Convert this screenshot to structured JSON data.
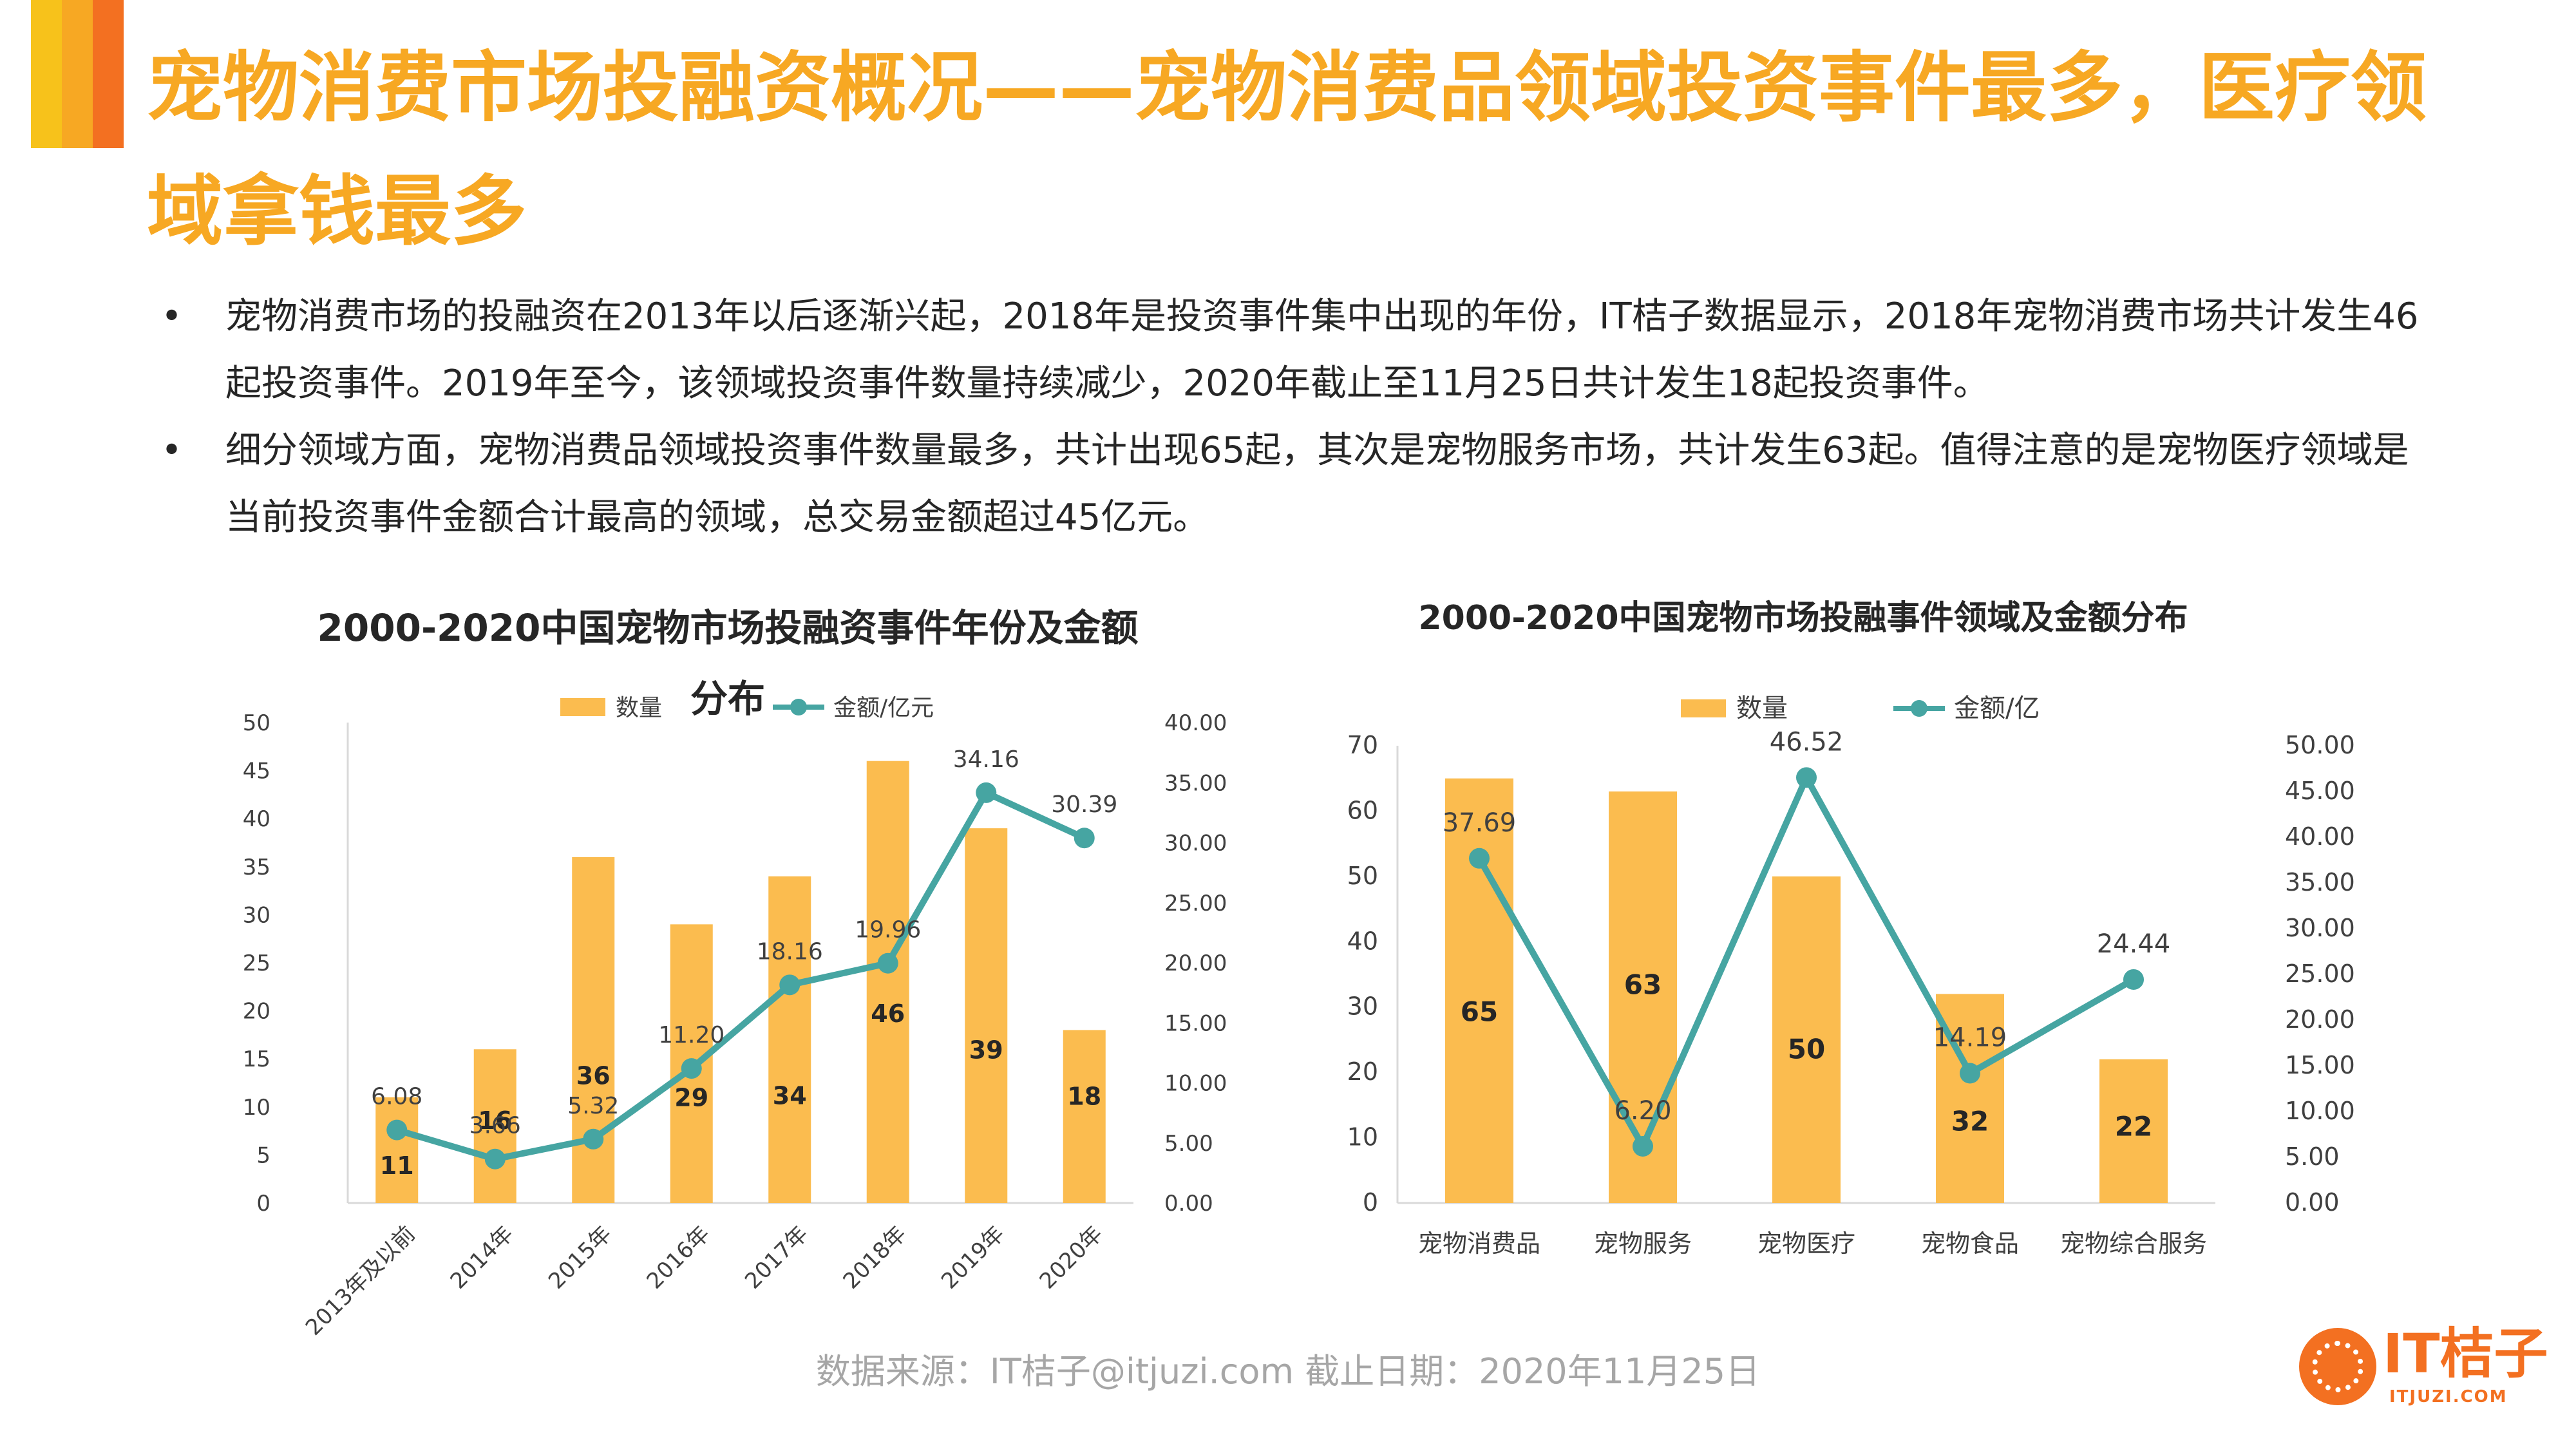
{
  "header": {
    "title": "宠物消费市场投融资概况——宠物消费品领域投资事件最多，医疗领域拿钱最多",
    "accent_colors": [
      "#f7c21b",
      "#f7a823",
      "#f37021"
    ]
  },
  "bullets": [
    "宠物消费市场的投融资在2013年以后逐渐兴起，2018年是投资事件集中出现的年份，IT桔子数据显示，2018年宠物消费市场共计发生46起投资事件。2019年至今，该领域投资事件数量持续减少，2020年截止至11月25日共计发生18起投资事件。",
    "细分领域方面，宠物消费品领域投资事件数量最多，共计出现65起，其次是宠物服务市场，共计发生63起。值得注意的是宠物医疗领域是当前投资事件金额合计最高的领域，总交易金额超过45亿元。"
  ],
  "colors": {
    "bar": "#fbbc4f",
    "line": "#46a5a2",
    "axis_text": "#404040",
    "title": "#f7a823"
  },
  "chart_data": [
    {
      "type": "bar",
      "title": "2000-2020中国宠物市场投融资事件年份及金额分布",
      "categories": [
        "2013年及以前",
        "2014年",
        "2015年",
        "2016年",
        "2017年",
        "2018年",
        "2019年",
        "2020年"
      ],
      "series": [
        {
          "name": "数量",
          "type": "bar",
          "axis": "left",
          "values": [
            11,
            16,
            36,
            29,
            34,
            46,
            39,
            18
          ],
          "labels": [
            "11",
            "16",
            "36",
            "29",
            "34",
            "46",
            "39",
            "18"
          ]
        },
        {
          "name": "金额/亿元",
          "type": "line",
          "axis": "right",
          "values": [
            6.08,
            3.66,
            5.32,
            11.2,
            18.16,
            19.96,
            34.16,
            30.39
          ],
          "labels": [
            "6.08",
            "3.66",
            "5.32",
            "11.20",
            "18.16",
            "19.96",
            "34.16",
            "30.39"
          ]
        }
      ],
      "y_left": {
        "min": 0,
        "max": 50,
        "ticks": [
          "0",
          "5",
          "10",
          "15",
          "20",
          "25",
          "30",
          "35",
          "40",
          "45",
          "50"
        ]
      },
      "y_right": {
        "min": 0,
        "max": 40,
        "ticks": [
          "0.00",
          "5.00",
          "10.00",
          "15.00",
          "20.00",
          "25.00",
          "30.00",
          "35.00",
          "40.00"
        ]
      },
      "legend": "top",
      "grid": false
    },
    {
      "type": "bar",
      "title": "2000-2020中国宠物市场投融事件领域及金额分布",
      "categories": [
        "宠物消费品",
        "宠物服务",
        "宠物医疗",
        "宠物食品",
        "宠物综合服务"
      ],
      "series": [
        {
          "name": "数量",
          "type": "bar",
          "axis": "left",
          "values": [
            65,
            63,
            50,
            32,
            22
          ],
          "labels": [
            "65",
            "63",
            "50",
            "32",
            "22"
          ]
        },
        {
          "name": "金额/亿",
          "type": "line",
          "axis": "right",
          "values": [
            37.69,
            6.2,
            46.52,
            14.19,
            24.44
          ],
          "labels": [
            "37.69",
            "6.20",
            "46.52",
            "14.19",
            "24.44"
          ]
        }
      ],
      "y_left": {
        "min": 0,
        "max": 70,
        "ticks": [
          "0",
          "10",
          "20",
          "30",
          "40",
          "50",
          "60",
          "70"
        ]
      },
      "y_right": {
        "min": 0,
        "max": 50,
        "ticks": [
          "0.00",
          "5.00",
          "10.00",
          "15.00",
          "20.00",
          "25.00",
          "30.00",
          "35.00",
          "40.00",
          "45.00",
          "50.00"
        ]
      },
      "legend": "top",
      "grid": false
    }
  ],
  "footer": {
    "source": "数据来源：IT桔子@itjuzi.com  截止日期：2020年11月25日"
  },
  "logo": {
    "name": "IT桔子",
    "sub": "ITJUZI.COM",
    "icon": "orange-slice-icon"
  }
}
